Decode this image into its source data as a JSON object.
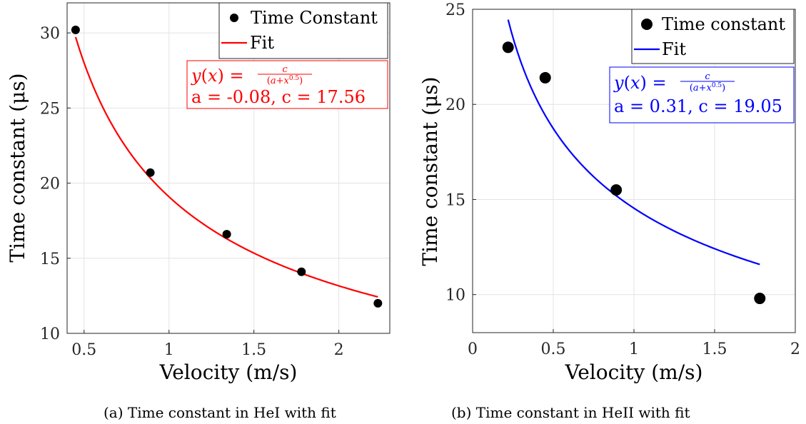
{
  "chart_data": [
    {
      "type": "scatter",
      "title": "",
      "caption": "(a) Time constant in HeI with fit",
      "xlabel": "Velocity (m/s)",
      "ylabel": "Time constant (μs)",
      "xlim": [
        0.4,
        2.3
      ],
      "ylim": [
        10,
        32
      ],
      "xticks": [
        0.5,
        1,
        1.5,
        2
      ],
      "xticklabels": [
        "0.5",
        "1",
        "1.5",
        "2"
      ],
      "yticks": [
        10,
        15,
        20,
        25,
        30
      ],
      "yticklabels": [
        "10",
        "15",
        "20",
        "25",
        "30"
      ],
      "grid": true,
      "legend_position": "top-right",
      "legend": [
        {
          "label": "Time Constant",
          "kind": "marker",
          "color": "#000000"
        },
        {
          "label": "Fit",
          "kind": "line",
          "color": "#ff0000"
        }
      ],
      "points": {
        "x": [
          0.45,
          0.89,
          1.34,
          1.78,
          2.23
        ],
        "y": [
          30.2,
          20.7,
          16.6,
          14.1,
          12.0
        ],
        "color": "#000000"
      },
      "fit": {
        "x_range": [
          0.45,
          2.23
        ],
        "a": -0.08,
        "c": 17.56,
        "color": "#ff0000"
      },
      "annotation": {
        "formula": "y(x) = c / (a+x^0.5)",
        "params": "a = -0.08, c = 17.56",
        "color": "#ff0000"
      }
    },
    {
      "type": "scatter",
      "title": "",
      "caption": "(b) Time constant in HeII with fit",
      "xlabel": "Velocity (m/s)",
      "ylabel": "Time constant (μs)",
      "xlim": [
        0,
        2
      ],
      "ylim": [
        8,
        25
      ],
      "xticks": [
        0,
        0.5,
        1,
        1.5,
        2
      ],
      "xticklabels": [
        "0",
        "0.5",
        "1",
        "1.5",
        "2"
      ],
      "yticks": [
        10,
        15,
        20,
        25
      ],
      "yticklabels": [
        "10",
        "15",
        "20",
        "25"
      ],
      "grid": true,
      "legend_position": "top-right",
      "legend": [
        {
          "label": "Time constant",
          "kind": "marker",
          "color": "#000000"
        },
        {
          "label": "Fit",
          "kind": "line",
          "color": "#0000ff"
        }
      ],
      "points": {
        "x": [
          0.22,
          0.45,
          0.89,
          1.78
        ],
        "y": [
          23.0,
          21.4,
          15.5,
          9.8
        ],
        "color": "#000000"
      },
      "fit": {
        "x_range": [
          0.22,
          1.78
        ],
        "a": 0.31,
        "c": 19.05,
        "color": "#0000ff"
      },
      "annotation": {
        "formula": "y(x) = c / (a+x^0.5)",
        "params": "a = 0.31, c = 19.05",
        "color": "#0000ff"
      }
    }
  ]
}
